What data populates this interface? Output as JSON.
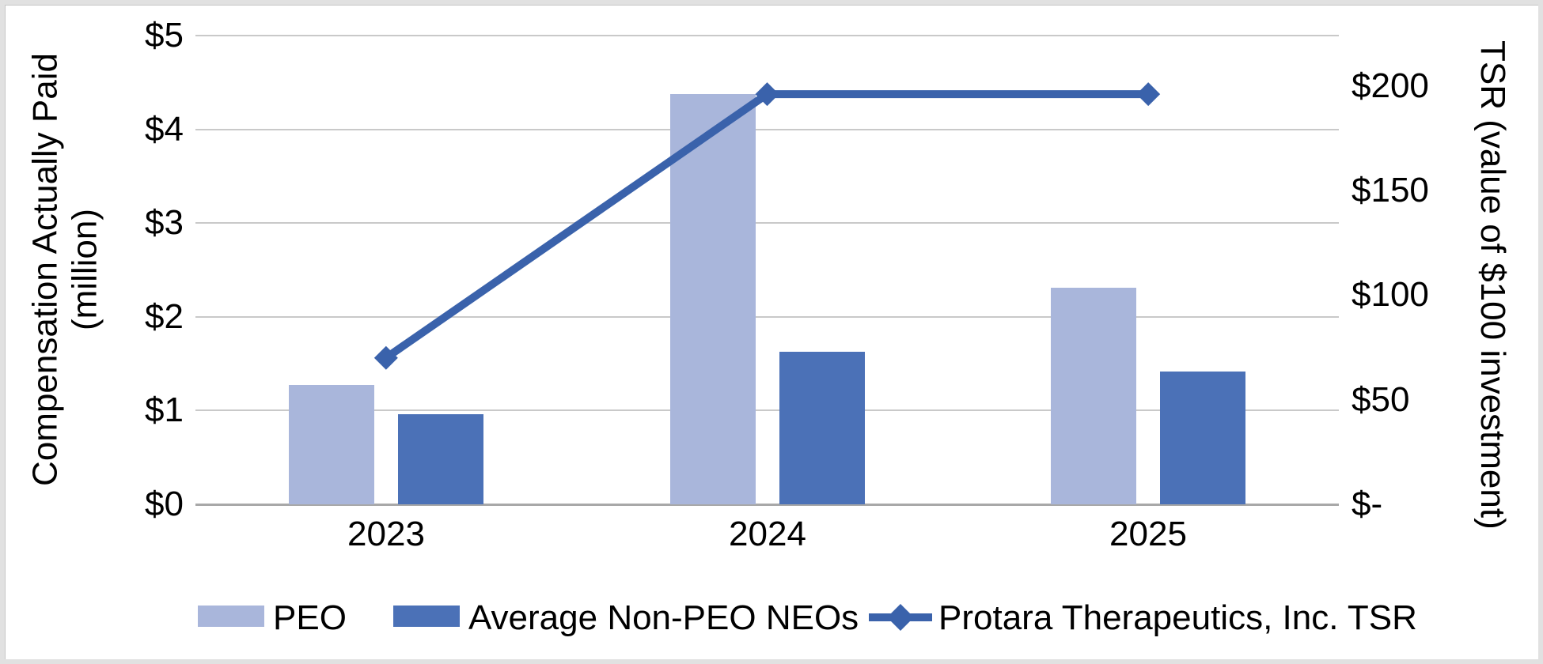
{
  "chart_data": {
    "type": "bar",
    "title": "",
    "categories": [
      "2023",
      "2024",
      "2025"
    ],
    "series": [
      {
        "name": "PEO",
        "type": "bar",
        "axis": "left",
        "color": "#A9B6DB",
        "values": [
          1.27,
          4.38,
          2.31
        ]
      },
      {
        "name": "Average Non-PEO NEOs",
        "type": "bar",
        "axis": "left",
        "color": "#4B71B7",
        "values": [
          0.96,
          1.63,
          1.42
        ]
      },
      {
        "name": "Protara Therapeutics, Inc. TSR",
        "type": "line",
        "axis": "right",
        "color": "#3A62AB",
        "marker": "diamond",
        "values": [
          70,
          196,
          196
        ]
      }
    ],
    "left_axis": {
      "label": "Compensation Actually Paid (million)",
      "label_lines": [
        "Compensation Actually Paid",
        "(million)"
      ],
      "ticks": [
        "$0",
        "$1",
        "$2",
        "$3",
        "$4",
        "$5"
      ],
      "tick_values": [
        0,
        1,
        2,
        3,
        4,
        5
      ],
      "min": 0,
      "max": 5
    },
    "right_axis": {
      "label": "TSR (value of $100 investment)",
      "ticks": [
        "$-",
        "$50",
        "$100",
        "$150",
        "$200"
      ],
      "tick_values": [
        0,
        50,
        100,
        150,
        200
      ],
      "min": 0,
      "max": 224
    },
    "grid": true,
    "legend_position": "bottom"
  },
  "legend": {
    "items": [
      "PEO",
      "Average Non-PEO NEOs",
      "Protara Therapeutics, Inc. TSR"
    ]
  },
  "colors": {
    "gridline": "#C9C9C9",
    "axis_line": "#A8A8A8",
    "text": "#000000",
    "frame": "#E1E1E1"
  }
}
